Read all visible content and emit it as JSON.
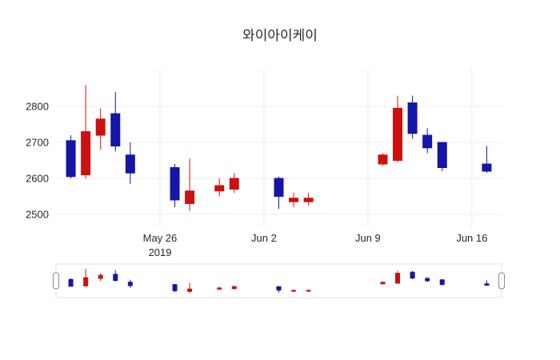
{
  "chart_data": {
    "type": "candlestick",
    "title": "와이아이케이",
    "colors": {
      "increasing": "#cc1111",
      "decreasing": "#1515a8",
      "grid": "#ebebeb",
      "slider_border": "#e0e0e0",
      "handle_border": "#8a8a8a"
    },
    "x_axis": {
      "range": [
        "2019-05-19",
        "2019-06-18"
      ],
      "ticks": [
        {
          "date": "2019-05-26",
          "label": "May 26",
          "sublabel": "2019"
        },
        {
          "date": "2019-06-02",
          "label": "Jun 2",
          "sublabel": ""
        },
        {
          "date": "2019-06-09",
          "label": "Jun 9",
          "sublabel": ""
        },
        {
          "date": "2019-06-16",
          "label": "Jun 16",
          "sublabel": ""
        }
      ]
    },
    "y_axis": {
      "range": [
        2462,
        2907
      ],
      "ticks": [
        2500,
        2600,
        2700,
        2800
      ]
    },
    "rangeslider": {
      "visible": true
    },
    "ohlc": [
      {
        "date": "2019-05-20",
        "open": 2705,
        "high": 2720,
        "low": 2600,
        "close": 2605
      },
      {
        "date": "2019-05-21",
        "open": 2610,
        "high": 2860,
        "low": 2600,
        "close": 2730
      },
      {
        "date": "2019-05-22",
        "open": 2720,
        "high": 2795,
        "low": 2680,
        "close": 2765
      },
      {
        "date": "2019-05-23",
        "open": 2780,
        "high": 2840,
        "low": 2675,
        "close": 2690
      },
      {
        "date": "2019-05-24",
        "open": 2665,
        "high": 2700,
        "low": 2585,
        "close": 2615
      },
      {
        "date": "2019-05-27",
        "open": 2630,
        "high": 2640,
        "low": 2520,
        "close": 2540
      },
      {
        "date": "2019-05-28",
        "open": 2530,
        "high": 2655,
        "low": 2510,
        "close": 2565
      },
      {
        "date": "2019-05-30",
        "open": 2565,
        "high": 2600,
        "low": 2550,
        "close": 2580
      },
      {
        "date": "2019-05-31",
        "open": 2570,
        "high": 2615,
        "low": 2560,
        "close": 2600
      },
      {
        "date": "2019-06-03",
        "open": 2600,
        "high": 2605,
        "low": 2515,
        "close": 2550
      },
      {
        "date": "2019-06-04",
        "open": 2535,
        "high": 2560,
        "low": 2520,
        "close": 2545
      },
      {
        "date": "2019-06-05",
        "open": 2535,
        "high": 2560,
        "low": 2525,
        "close": 2545
      },
      {
        "date": "2019-06-10",
        "open": 2640,
        "high": 2670,
        "low": 2635,
        "close": 2665
      },
      {
        "date": "2019-06-11",
        "open": 2650,
        "high": 2830,
        "low": 2645,
        "close": 2795
      },
      {
        "date": "2019-06-12",
        "open": 2810,
        "high": 2830,
        "low": 2710,
        "close": 2725
      },
      {
        "date": "2019-06-13",
        "open": 2720,
        "high": 2740,
        "low": 2670,
        "close": 2685
      },
      {
        "date": "2019-06-14",
        "open": 2700,
        "high": 2700,
        "low": 2620,
        "close": 2630
      },
      {
        "date": "2019-06-17",
        "open": 2640,
        "high": 2690,
        "low": 2615,
        "close": 2620
      }
    ]
  }
}
